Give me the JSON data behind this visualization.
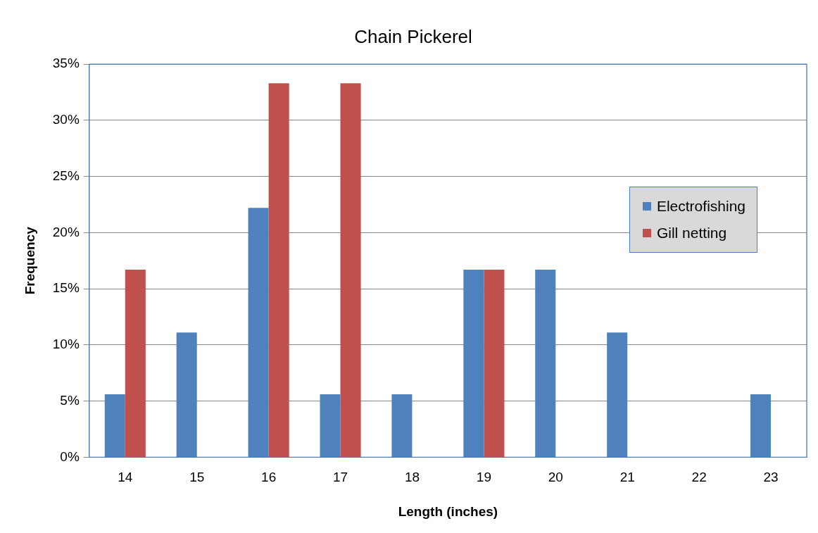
{
  "chart_data": {
    "type": "bar",
    "title": "Chain Pickerel",
    "xlabel": "Length (inches)",
    "ylabel": "Frequency",
    "categories": [
      "14",
      "15",
      "16",
      "17",
      "18",
      "19",
      "20",
      "21",
      "22",
      "23"
    ],
    "series": [
      {
        "name": "Electrofishing",
        "color": "#4f81bd",
        "values": [
          5.6,
          11.1,
          22.2,
          5.6,
          5.6,
          16.7,
          16.7,
          11.1,
          0,
          5.6
        ]
      },
      {
        "name": "Gill netting",
        "color": "#c0504d",
        "values": [
          16.7,
          0,
          33.3,
          33.3,
          0,
          16.7,
          0,
          0,
          0,
          0
        ]
      }
    ],
    "ylim": [
      0,
      35
    ],
    "yticks": [
      {
        "value": 0,
        "label": "0%"
      },
      {
        "value": 5,
        "label": "5%"
      },
      {
        "value": 10,
        "label": "10%"
      },
      {
        "value": 15,
        "label": "15%"
      },
      {
        "value": 20,
        "label": "20%"
      },
      {
        "value": 25,
        "label": "25%"
      },
      {
        "value": 30,
        "label": "30%"
      },
      {
        "value": 35,
        "label": "35%"
      }
    ],
    "grid": "y",
    "legend": "right"
  }
}
